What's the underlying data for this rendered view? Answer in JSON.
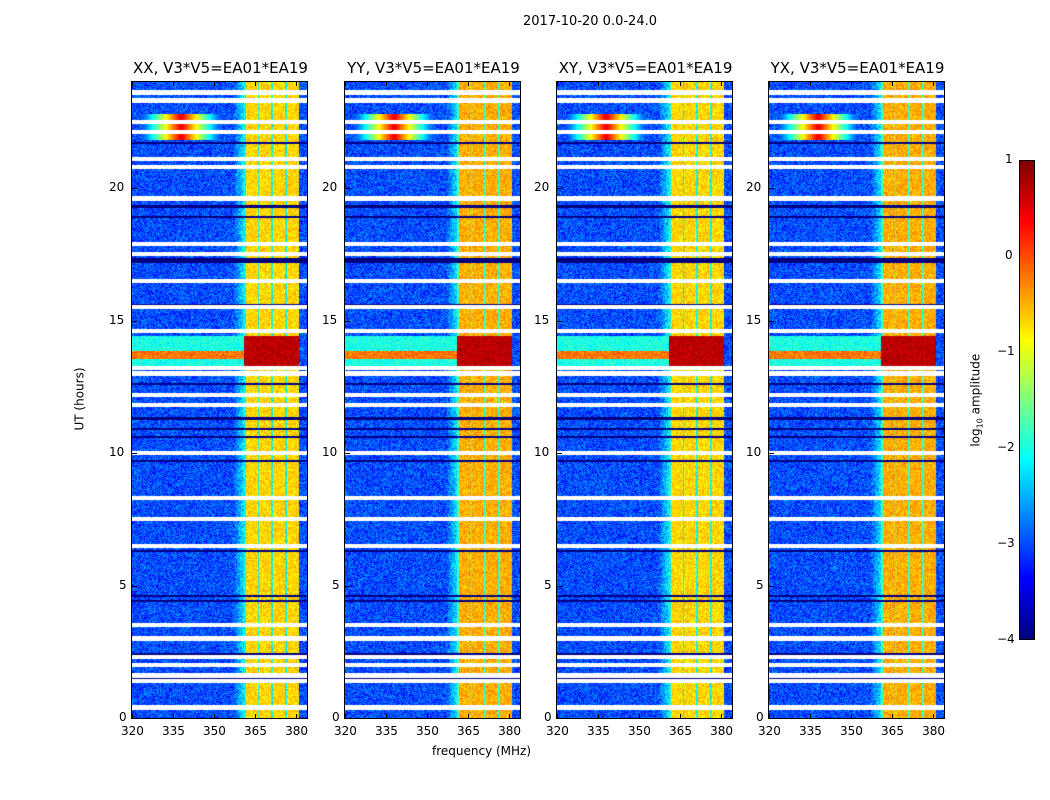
{
  "chart_data": {
    "type": "heatmap",
    "title": "2017-10-20 0.0-24.0",
    "xlabel": "frequency (MHz)",
    "ylabel": "UT (hours)",
    "xlim": [
      320,
      384
    ],
    "ylim": [
      0,
      24
    ],
    "xticks": [
      "320",
      "335",
      "350",
      "365",
      "380"
    ],
    "xtick_values": [
      320,
      335,
      350,
      365,
      380
    ],
    "yticks": [
      "0",
      "5",
      "10",
      "15",
      "20"
    ],
    "ytick_values": [
      0,
      5,
      10,
      15,
      20
    ],
    "panels": [
      {
        "title": "XX, V3*V5=EA01*EA19"
      },
      {
        "title": "YY, V3*V5=EA01*EA19"
      },
      {
        "title": "XY, V3*V5=EA01*EA19"
      },
      {
        "title": "YX, V3*V5=EA01*EA19"
      }
    ],
    "features": {
      "background_log_amp": -3,
      "rfi_band_mhz": [
        361,
        381
      ],
      "rfi_band_log_amp": -0.8,
      "strong_rfi_hours": [
        13.3,
        14.4
      ],
      "strong_rfi_log_amp": 0.7,
      "narrowband_source_mhz": 338,
      "narrowband_source_hours": [
        21.8,
        22.8
      ],
      "flagged_hours": [
        0.4,
        1.4,
        1.6,
        2.0,
        2.3,
        3.0,
        3.5,
        6.5,
        7.5,
        8.3,
        10.0,
        11.8,
        12.2,
        13.0,
        13.2,
        14.6,
        15.5,
        16.5,
        17.5,
        17.9,
        19.6,
        20.8,
        21.1,
        22.1,
        22.5,
        23.3,
        23.6
      ],
      "dark_hours": [
        1.5,
        2.4,
        4.4,
        4.6,
        6.3,
        9.7,
        10.6,
        10.9,
        11.3,
        12.6,
        15.6,
        17.2,
        17.3,
        18.9,
        19.3,
        21.7
      ]
    },
    "colorbar": {
      "label": "log10 amplitude",
      "ticks": [
        "1",
        "0",
        "−1",
        "−2",
        "−3",
        "−4"
      ],
      "tick_values": [
        1,
        0,
        -1,
        -2,
        -3,
        -4
      ],
      "range": [
        -4,
        1
      ],
      "colormap": "jet"
    }
  }
}
